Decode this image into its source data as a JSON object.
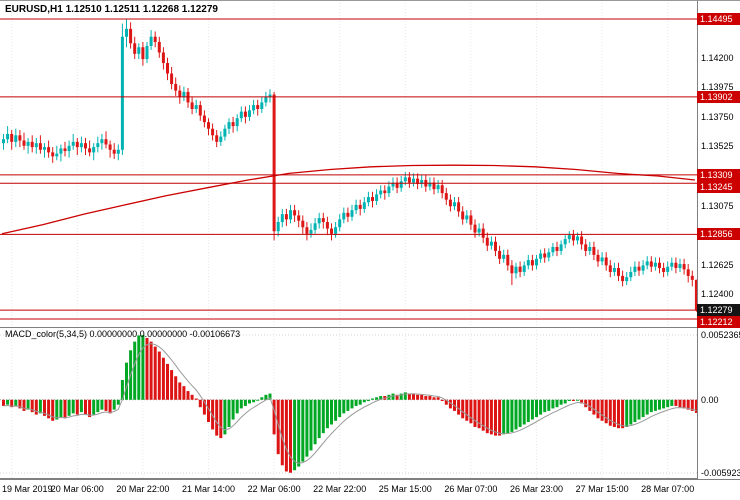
{
  "header": {
    "title_overlay": "EURUSD,H1 1.12510 1.12511 1.12268 1.12279"
  },
  "macd_header": {
    "label_line": "MACD_color(5,34,5) 0.00000000 0.00000000 -0.00106673"
  },
  "colors": {
    "bull": "#00b2b2",
    "bear": "#dd1616",
    "level_line": "#c00000",
    "ma_line": "#cc0000",
    "macd_up": "#00a824",
    "macd_down": "#dc1414",
    "macd_signal": "#9a9a9a",
    "badge_red": "#cc0000",
    "badge_black": "#141414",
    "grid": "#e8e8e8",
    "separator": "#808080"
  },
  "chart_data": {
    "type": "candlestick",
    "title": "EURUSD,H1",
    "symbol": "EURUSD",
    "timeframe": "H1",
    "current_ohlc": {
      "open": "1.12510",
      "high": "1.12511",
      "low": "1.12268",
      "close": "1.12279"
    },
    "price_axis": {
      "max": 1.14632,
      "min": 1.12151,
      "ticks": [
        "1.14200",
        "1.13975",
        "1.13750",
        "1.13525",
        "1.13300",
        "1.13075",
        "1.12850",
        "1.12625",
        "1.12400"
      ]
    },
    "levels": [
      {
        "price": 1.14495,
        "label": "1.14495"
      },
      {
        "price": 1.13902,
        "label": "1.13902"
      },
      {
        "price": 1.13309,
        "label": "1.13309"
      },
      {
        "price": 1.13245,
        "label": "1.13245"
      },
      {
        "price": 1.12856,
        "label": "1.12856"
      },
      {
        "price": 1.12212,
        "label": "1.12212"
      }
    ],
    "bid": {
      "price": 1.12279,
      "label": "1.12279"
    },
    "ma_red": [
      [
        0,
        1.1286
      ],
      [
        10,
        1.1293
      ],
      [
        20,
        1.1301
      ],
      [
        30,
        1.1308
      ],
      [
        40,
        1.1315
      ],
      [
        50,
        1.1321
      ],
      [
        60,
        1.1327
      ],
      [
        70,
        1.1332
      ],
      [
        80,
        1.1335
      ],
      [
        90,
        1.1337
      ],
      [
        100,
        1.1338
      ],
      [
        110,
        1.13382
      ],
      [
        120,
        1.1338
      ],
      [
        130,
        1.1337
      ],
      [
        140,
        1.1335
      ],
      [
        150,
        1.1332
      ],
      [
        160,
        1.133
      ],
      [
        169,
        1.1327
      ]
    ],
    "candles": [
      [
        1.1355,
        1.1362,
        1.135,
        1.1358
      ],
      [
        1.1358,
        1.1368,
        1.1355,
        1.1362
      ],
      [
        1.1362,
        1.1365,
        1.135,
        1.1356
      ],
      [
        1.1356,
        1.1366,
        1.1352,
        1.1361
      ],
      [
        1.1361,
        1.1365,
        1.1352,
        1.1357
      ],
      [
        1.1357,
        1.1363,
        1.135,
        1.1353
      ],
      [
        1.1353,
        1.1359,
        1.1347,
        1.1356
      ],
      [
        1.1356,
        1.1361,
        1.1348,
        1.1352
      ],
      [
        1.1352,
        1.1359,
        1.1347,
        1.1355
      ],
      [
        1.1355,
        1.1361,
        1.1347,
        1.135
      ],
      [
        1.135,
        1.1355,
        1.1344,
        1.1352
      ],
      [
        1.1352,
        1.1357,
        1.1344,
        1.1348
      ],
      [
        1.1348,
        1.1352,
        1.134,
        1.1345
      ],
      [
        1.1345,
        1.1353,
        1.1342,
        1.1347
      ],
      [
        1.1347,
        1.1354,
        1.1341,
        1.1351
      ],
      [
        1.1351,
        1.1356,
        1.1345,
        1.1349
      ],
      [
        1.1349,
        1.1357,
        1.1344,
        1.1353
      ],
      [
        1.1353,
        1.1362,
        1.135,
        1.1356
      ],
      [
        1.1356,
        1.1359,
        1.1346,
        1.1352
      ],
      [
        1.1352,
        1.136,
        1.1348,
        1.1355
      ],
      [
        1.1355,
        1.1359,
        1.1346,
        1.1351
      ],
      [
        1.1351,
        1.1357,
        1.1345,
        1.1348
      ],
      [
        1.1348,
        1.1355,
        1.1342,
        1.1352
      ],
      [
        1.1352,
        1.136,
        1.1348,
        1.1355
      ],
      [
        1.1355,
        1.1362,
        1.135,
        1.1358
      ],
      [
        1.1358,
        1.1364,
        1.1351,
        1.1354
      ],
      [
        1.1354,
        1.1357,
        1.1344,
        1.135
      ],
      [
        1.135,
        1.1355,
        1.1343,
        1.1347
      ],
      [
        1.1347,
        1.1354,
        1.1342,
        1.135
      ],
      [
        1.135,
        1.1446,
        1.1346,
        1.1436
      ],
      [
        1.1436,
        1.1449,
        1.1428,
        1.1442
      ],
      [
        1.1442,
        1.1447,
        1.1427,
        1.1431
      ],
      [
        1.1431,
        1.1436,
        1.1419,
        1.1423
      ],
      [
        1.1423,
        1.1431,
        1.1419,
        1.1428
      ],
      [
        1.1428,
        1.1432,
        1.1414,
        1.1419
      ],
      [
        1.1419,
        1.1432,
        1.1416,
        1.1429
      ],
      [
        1.1429,
        1.1441,
        1.1426,
        1.1436
      ],
      [
        1.1436,
        1.144,
        1.1428,
        1.1432
      ],
      [
        1.1432,
        1.1436,
        1.142,
        1.1424
      ],
      [
        1.1424,
        1.1428,
        1.1411,
        1.1416
      ],
      [
        1.1416,
        1.142,
        1.1403,
        1.1408
      ],
      [
        1.1408,
        1.1413,
        1.1396,
        1.14
      ],
      [
        1.14,
        1.1405,
        1.1391,
        1.1395
      ],
      [
        1.1395,
        1.1399,
        1.1385,
        1.139
      ],
      [
        1.139,
        1.1398,
        1.1387,
        1.1394
      ],
      [
        1.1394,
        1.1397,
        1.1382,
        1.1386
      ],
      [
        1.1386,
        1.139,
        1.1377,
        1.1381
      ],
      [
        1.1381,
        1.1388,
        1.1378,
        1.1384
      ],
      [
        1.1384,
        1.1387,
        1.1372,
        1.1376
      ],
      [
        1.1376,
        1.138,
        1.1367,
        1.1371
      ],
      [
        1.1371,
        1.1374,
        1.1361,
        1.1366
      ],
      [
        1.1366,
        1.137,
        1.1357,
        1.1361
      ],
      [
        1.1361,
        1.1365,
        1.1352,
        1.1356
      ],
      [
        1.1356,
        1.1364,
        1.1353,
        1.136
      ],
      [
        1.136,
        1.1369,
        1.1357,
        1.1366
      ],
      [
        1.1366,
        1.1374,
        1.1362,
        1.1371
      ],
      [
        1.1371,
        1.1375,
        1.1363,
        1.1368
      ],
      [
        1.1368,
        1.1377,
        1.1364,
        1.1374
      ],
      [
        1.1374,
        1.1383,
        1.1371,
        1.1379
      ],
      [
        1.1379,
        1.1383,
        1.137,
        1.1375
      ],
      [
        1.1375,
        1.1384,
        1.1372,
        1.138
      ],
      [
        1.138,
        1.1388,
        1.1377,
        1.1384
      ],
      [
        1.1384,
        1.1388,
        1.1376,
        1.1381
      ],
      [
        1.1381,
        1.139,
        1.1378,
        1.1386
      ],
      [
        1.1386,
        1.1394,
        1.1383,
        1.139
      ],
      [
        1.139,
        1.1396,
        1.1386,
        1.1392
      ],
      [
        1.1392,
        1.1394,
        1.1281,
        1.1288
      ],
      [
        1.1288,
        1.1299,
        1.1284,
        1.1295
      ],
      [
        1.1295,
        1.1305,
        1.1291,
        1.1301
      ],
      [
        1.1301,
        1.1305,
        1.1292,
        1.1297
      ],
      [
        1.1297,
        1.1308,
        1.1294,
        1.1304
      ],
      [
        1.1304,
        1.1308,
        1.1295,
        1.13
      ],
      [
        1.13,
        1.1304,
        1.1291,
        1.1296
      ],
      [
        1.1296,
        1.13,
        1.1286,
        1.1291
      ],
      [
        1.1291,
        1.1295,
        1.1281,
        1.1286
      ],
      [
        1.1286,
        1.1294,
        1.1283,
        1.1289
      ],
      [
        1.1289,
        1.1298,
        1.1286,
        1.1294
      ],
      [
        1.1294,
        1.1302,
        1.129,
        1.1298
      ],
      [
        1.1298,
        1.1302,
        1.129,
        1.1295
      ],
      [
        1.1295,
        1.1299,
        1.1285,
        1.129
      ],
      [
        1.129,
        1.1294,
        1.1281,
        1.1286
      ],
      [
        1.1286,
        1.1295,
        1.1283,
        1.1291
      ],
      [
        1.1291,
        1.1301,
        1.1288,
        1.1297
      ],
      [
        1.1297,
        1.1306,
        1.1294,
        1.1302
      ],
      [
        1.1302,
        1.1306,
        1.1295,
        1.1299
      ],
      [
        1.1299,
        1.1308,
        1.1296,
        1.1304
      ],
      [
        1.1304,
        1.1312,
        1.1301,
        1.1308
      ],
      [
        1.1308,
        1.1312,
        1.13,
        1.1305
      ],
      [
        1.1305,
        1.1314,
        1.1302,
        1.131
      ],
      [
        1.131,
        1.1318,
        1.1307,
        1.1314
      ],
      [
        1.1314,
        1.1318,
        1.1306,
        1.1311
      ],
      [
        1.1311,
        1.132,
        1.1308,
        1.1316
      ],
      [
        1.1316,
        1.1323,
        1.1313,
        1.1319
      ],
      [
        1.1319,
        1.1323,
        1.1312,
        1.1317
      ],
      [
        1.1317,
        1.1326,
        1.1314,
        1.1322
      ],
      [
        1.1322,
        1.1329,
        1.1319,
        1.1325
      ],
      [
        1.1325,
        1.1329,
        1.1317,
        1.1321
      ],
      [
        1.1321,
        1.133,
        1.1318,
        1.1326
      ],
      [
        1.1326,
        1.1333,
        1.1323,
        1.1329
      ],
      [
        1.1329,
        1.1333,
        1.1321,
        1.1325
      ],
      [
        1.1325,
        1.1332,
        1.1322,
        1.1328
      ],
      [
        1.1328,
        1.1332,
        1.132,
        1.1324
      ],
      [
        1.1324,
        1.1331,
        1.1321,
        1.1327
      ],
      [
        1.1327,
        1.1331,
        1.1318,
        1.1322
      ],
      [
        1.1322,
        1.1329,
        1.1319,
        1.1325
      ],
      [
        1.1325,
        1.1329,
        1.1316,
        1.132
      ],
      [
        1.132,
        1.1327,
        1.1317,
        1.1323
      ],
      [
        1.1323,
        1.1327,
        1.1313,
        1.1317
      ],
      [
        1.1317,
        1.1321,
        1.1308,
        1.1312
      ],
      [
        1.1312,
        1.1316,
        1.1303,
        1.1307
      ],
      [
        1.1307,
        1.1314,
        1.1304,
        1.131
      ],
      [
        1.131,
        1.1314,
        1.1299,
        1.1303
      ],
      [
        1.1303,
        1.1307,
        1.1293,
        1.1297
      ],
      [
        1.1297,
        1.1304,
        1.1294,
        1.13
      ],
      [
        1.13,
        1.1304,
        1.1289,
        1.1293
      ],
      [
        1.1293,
        1.1297,
        1.1283,
        1.1287
      ],
      [
        1.1287,
        1.1294,
        1.1284,
        1.129
      ],
      [
        1.129,
        1.1294,
        1.1279,
        1.1283
      ],
      [
        1.1283,
        1.1287,
        1.1273,
        1.1277
      ],
      [
        1.1277,
        1.1284,
        1.1274,
        1.128
      ],
      [
        1.128,
        1.1284,
        1.1269,
        1.1273
      ],
      [
        1.1273,
        1.1277,
        1.1263,
        1.1267
      ],
      [
        1.1267,
        1.1274,
        1.1264,
        1.127
      ],
      [
        1.127,
        1.1274,
        1.1258,
        1.1262
      ],
      [
        1.1262,
        1.1266,
        1.1247,
        1.1256
      ],
      [
        1.1256,
        1.1264,
        1.1252,
        1.1261
      ],
      [
        1.1261,
        1.1265,
        1.1253,
        1.1257
      ],
      [
        1.1257,
        1.1265,
        1.1254,
        1.1262
      ],
      [
        1.1262,
        1.127,
        1.1259,
        1.1266
      ],
      [
        1.1266,
        1.127,
        1.1258,
        1.1262
      ],
      [
        1.1262,
        1.127,
        1.1259,
        1.1267
      ],
      [
        1.1267,
        1.1274,
        1.1264,
        1.1271
      ],
      [
        1.1271,
        1.1275,
        1.1264,
        1.1268
      ],
      [
        1.1268,
        1.1275,
        1.1265,
        1.1272
      ],
      [
        1.1272,
        1.1279,
        1.1269,
        1.1276
      ],
      [
        1.1276,
        1.128,
        1.1269,
        1.1273
      ],
      [
        1.1273,
        1.1281,
        1.127,
        1.1278
      ],
      [
        1.1278,
        1.1285,
        1.1275,
        1.1282
      ],
      [
        1.1282,
        1.1288,
        1.1279,
        1.1285
      ],
      [
        1.1285,
        1.1289,
        1.1277,
        1.1281
      ],
      [
        1.1281,
        1.1287,
        1.1278,
        1.1284
      ],
      [
        1.1284,
        1.1288,
        1.1274,
        1.1278
      ],
      [
        1.1278,
        1.1282,
        1.1269,
        1.1273
      ],
      [
        1.1273,
        1.128,
        1.127,
        1.1276
      ],
      [
        1.1276,
        1.128,
        1.1266,
        1.127
      ],
      [
        1.127,
        1.1274,
        1.1261,
        1.1265
      ],
      [
        1.1265,
        1.1272,
        1.1262,
        1.1268
      ],
      [
        1.1268,
        1.1272,
        1.1258,
        1.1262
      ],
      [
        1.1262,
        1.1266,
        1.1253,
        1.1257
      ],
      [
        1.1257,
        1.1264,
        1.1254,
        1.126
      ],
      [
        1.126,
        1.1264,
        1.125,
        1.1254
      ],
      [
        1.1254,
        1.1258,
        1.1246,
        1.125
      ],
      [
        1.125,
        1.1257,
        1.1247,
        1.1253
      ],
      [
        1.1253,
        1.1261,
        1.125,
        1.1257
      ],
      [
        1.1257,
        1.1265,
        1.1254,
        1.1261
      ],
      [
        1.1261,
        1.1265,
        1.1254,
        1.1258
      ],
      [
        1.1258,
        1.1266,
        1.1255,
        1.1262
      ],
      [
        1.1262,
        1.1269,
        1.1259,
        1.1265
      ],
      [
        1.1265,
        1.1269,
        1.1257,
        1.1261
      ],
      [
        1.1261,
        1.1268,
        1.1258,
        1.1264
      ],
      [
        1.1264,
        1.1268,
        1.1256,
        1.126
      ],
      [
        1.126,
        1.1264,
        1.1253,
        1.1257
      ],
      [
        1.1257,
        1.1265,
        1.1254,
        1.1261
      ],
      [
        1.1261,
        1.1268,
        1.1258,
        1.1264
      ],
      [
        1.1264,
        1.1268,
        1.1256,
        1.126
      ],
      [
        1.126,
        1.1267,
        1.1257,
        1.1263
      ],
      [
        1.1263,
        1.1267,
        1.1255,
        1.1259
      ],
      [
        1.1259,
        1.1263,
        1.1249,
        1.1254
      ],
      [
        1.1254,
        1.1258,
        1.1246,
        1.1251
      ],
      [
        1.1251,
        1.12511,
        1.12268,
        1.12279
      ]
    ],
    "macd": {
      "name": "MACD_color",
      "params": "5,34,5",
      "values_display": [
        "0.00000000",
        "0.00000000",
        "-0.00106673"
      ],
      "axis": {
        "max": 0.0052365,
        "min": -0.005923,
        "labels": [
          "0.0052365",
          "0.00",
          "-0.005923"
        ]
      },
      "histogram": [
        -0.0005,
        -0.0004,
        -0.0006,
        -0.0005,
        -0.0007,
        -0.0009,
        -0.0008,
        -0.001,
        -0.0012,
        -0.0011,
        -0.0013,
        -0.0015,
        -0.0017,
        -0.0016,
        -0.0014,
        -0.0015,
        -0.0013,
        -0.0011,
        -0.0012,
        -0.001,
        -0.0012,
        -0.0014,
        -0.0012,
        -0.001,
        -0.0008,
        -0.0009,
        -0.0011,
        -0.0008,
        -0.0004,
        0.0016,
        0.003,
        0.004,
        0.0047,
        0.0052,
        0.00523,
        0.005,
        0.0047,
        0.0043,
        0.0039,
        0.0034,
        0.0029,
        0.0024,
        0.0019,
        0.0014,
        0.0011,
        0.0007,
        0.0004,
        0.0001,
        -0.0006,
        -0.0012,
        -0.0018,
        -0.0024,
        -0.0029,
        -0.0031,
        -0.0028,
        -0.0022,
        -0.0016,
        -0.0011,
        -0.0007,
        -0.0005,
        -0.0003,
        -0.0002,
        0.0,
        0.0002,
        0.0004,
        0.0005,
        -0.0028,
        -0.0044,
        -0.0053,
        -0.0058,
        -0.0059,
        -0.0057,
        -0.0054,
        -0.005,
        -0.0046,
        -0.0041,
        -0.0036,
        -0.0031,
        -0.0027,
        -0.0023,
        -0.002,
        -0.0017,
        -0.0014,
        -0.0011,
        -0.0009,
        -0.0007,
        -0.0005,
        -0.0004,
        -0.0002,
        -0.0001,
        0.0001,
        0.0002,
        0.0003,
        0.0003,
        0.0004,
        0.0005,
        0.0004,
        0.0005,
        0.0006,
        0.0005,
        0.0005,
        0.0004,
        0.0004,
        0.0003,
        0.0003,
        0.0002,
        0.0002,
        -0.0001,
        -0.0004,
        -0.0007,
        -0.0009,
        -0.0012,
        -0.0015,
        -0.0017,
        -0.0019,
        -0.0022,
        -0.0023,
        -0.0025,
        -0.0027,
        -0.0028,
        -0.0029,
        -0.0029,
        -0.0028,
        -0.0027,
        -0.0026,
        -0.0024,
        -0.0022,
        -0.002,
        -0.0018,
        -0.0016,
        -0.0014,
        -0.0012,
        -0.001,
        -0.0009,
        -0.0007,
        -0.0006,
        -0.0004,
        -0.0003,
        -0.0001,
        -0.0001,
        0.0,
        -0.0003,
        -0.0006,
        -0.0009,
        -0.0012,
        -0.0015,
        -0.0017,
        -0.0019,
        -0.0021,
        -0.0022,
        -0.0023,
        -0.0023,
        -0.0022,
        -0.002,
        -0.0018,
        -0.0016,
        -0.0014,
        -0.0012,
        -0.001,
        -0.0009,
        -0.0008,
        -0.0007,
        -0.0006,
        -0.0005,
        -0.0005,
        -0.0006,
        -0.0007,
        -0.0008,
        -0.0009,
        -0.00106673
      ]
    },
    "time_labels": [
      {
        "bar": 2,
        "text": "19 Mar 2019"
      },
      {
        "bar": 18,
        "text": "20 Mar 06:00"
      },
      {
        "bar": 34,
        "text": "20 Mar 22:00"
      },
      {
        "bar": 50,
        "text": "21 Mar 14:00"
      },
      {
        "bar": 66,
        "text": "22 Mar 06:00"
      },
      {
        "bar": 82,
        "text": "22 Mar 22:00"
      },
      {
        "bar": 98,
        "text": "25 Mar 15:00"
      },
      {
        "bar": 114,
        "text": "26 Mar 07:00"
      },
      {
        "bar": 130,
        "text": "26 Mar 23:00"
      },
      {
        "bar": 146,
        "text": "27 Mar 15:00"
      },
      {
        "bar": 162,
        "text": "28 Mar 07:00"
      }
    ]
  }
}
